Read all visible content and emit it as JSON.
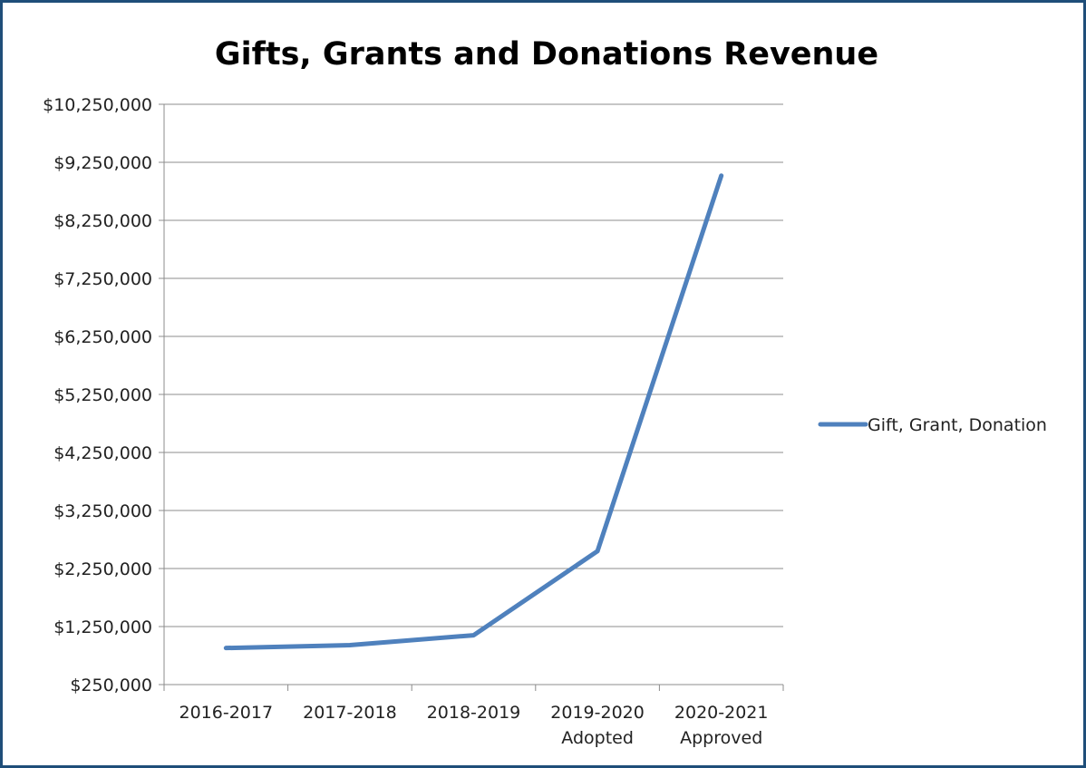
{
  "chart_data": {
    "type": "line",
    "title": "Gifts, Grants and Donations Revenue",
    "xlabel": "",
    "ylabel": "",
    "categories": [
      [
        "2016-2017"
      ],
      [
        "2017-2018"
      ],
      [
        "2018-2019"
      ],
      [
        "2019-2020",
        "Adopted"
      ],
      [
        "2020-2021",
        "Approved"
      ]
    ],
    "y_ticks": [
      250000,
      1250000,
      2250000,
      3250000,
      4250000,
      5250000,
      6250000,
      7250000,
      8250000,
      9250000,
      10250000
    ],
    "y_tick_labels": [
      "$250,000",
      "$1,250,000",
      "$2,250,000",
      "$3,250,000",
      "$4,250,000",
      "$5,250,000",
      "$6,250,000",
      "$7,250,000",
      "$8,250,000",
      "$9,250,000",
      "$10,250,000"
    ],
    "ylim": [
      250000,
      10250000
    ],
    "grid": true,
    "legend_position": "right",
    "series": [
      {
        "name": "Gift, Grant, Donation",
        "color": "#4f81bd",
        "values": [
          880000,
          930000,
          1100000,
          2550000,
          9020000
        ]
      }
    ]
  }
}
